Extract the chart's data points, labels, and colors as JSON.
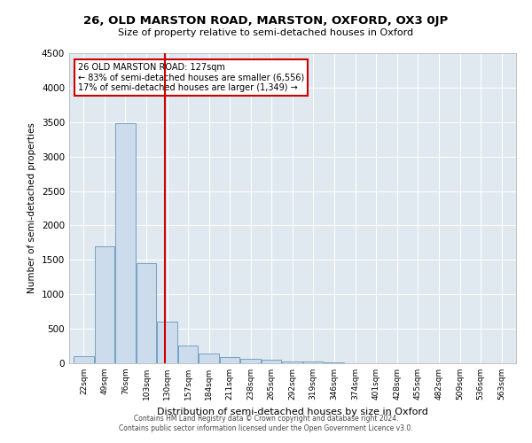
{
  "title": "26, OLD MARSTON ROAD, MARSTON, OXFORD, OX3 0JP",
  "subtitle": "Size of property relative to semi-detached houses in Oxford",
  "xlabel": "Distribution of semi-detached houses by size in Oxford",
  "ylabel": "Number of semi-detached properties",
  "footer_line1": "Contains HM Land Registry data © Crown copyright and database right 2024.",
  "footer_line2": "Contains public sector information licensed under the Open Government Licence v3.0.",
  "annotation_title": "26 OLD MARSTON ROAD: 127sqm",
  "annotation_line1": "← 83% of semi-detached houses are smaller (6,556)",
  "annotation_line2": "17% of semi-detached houses are larger (1,349) →",
  "property_size": 127,
  "bar_color": "#ccdcec",
  "bar_edge_color": "#6699bb",
  "vline_color": "#cc0000",
  "annotation_box_color": "#cc0000",
  "background_color": "#e0e8f0",
  "categories": [
    22,
    49,
    76,
    103,
    130,
    157,
    184,
    211,
    238,
    265,
    292,
    319,
    346,
    374,
    401,
    428,
    455,
    482,
    509,
    536,
    563
  ],
  "bar_heights": [
    100,
    1700,
    3490,
    1450,
    610,
    255,
    145,
    85,
    70,
    50,
    20,
    20,
    10,
    5,
    3,
    2,
    2,
    1,
    1,
    0,
    0
  ],
  "ylim": [
    0,
    4500
  ],
  "yticks": [
    0,
    500,
    1000,
    1500,
    2000,
    2500,
    3000,
    3500,
    4000,
    4500
  ],
  "bin_width": 27
}
